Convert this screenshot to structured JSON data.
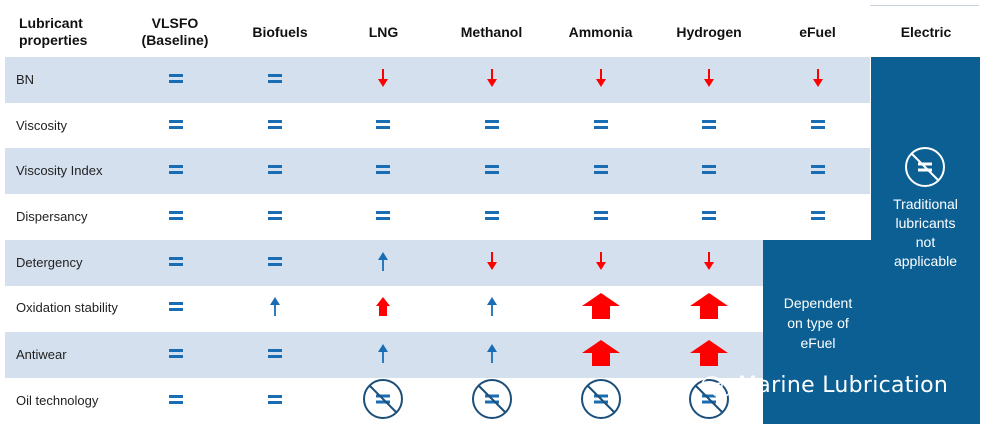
{
  "header": {
    "columns": [
      "Lubricant properties",
      "VLSFO (Baseline)",
      "Biofuels",
      "LNG",
      "Methanol",
      "Ammonia",
      "Hydrogen",
      "eFuel",
      "Electric"
    ]
  },
  "rows": [
    {
      "label": "BN",
      "cells": [
        "eq",
        "eq",
        "down-red",
        "down-red",
        "down-red",
        "down-red",
        "down-red"
      ]
    },
    {
      "label": "Viscosity",
      "cells": [
        "eq",
        "eq",
        "eq",
        "eq",
        "eq",
        "eq",
        "eq"
      ]
    },
    {
      "label": "Viscosity Index",
      "cells": [
        "eq",
        "eq",
        "eq",
        "eq",
        "eq",
        "eq",
        "eq"
      ]
    },
    {
      "label": "Dispersancy",
      "cells": [
        "eq",
        "eq",
        "eq",
        "eq",
        "eq",
        "eq",
        "eq"
      ]
    },
    {
      "label": "Detergency",
      "cells": [
        "eq",
        "eq",
        "up-blue",
        "down-red",
        "down-red",
        "down-red",
        ""
      ]
    },
    {
      "label": "Oxidation stability",
      "cells": [
        "eq",
        "up-blue",
        "up-red",
        "up-blue",
        "big-up-red",
        "big-up-red",
        ""
      ]
    },
    {
      "label": "Antiwear",
      "cells": [
        "eq",
        "eq",
        "up-blue",
        "up-blue",
        "big-up-red",
        "big-up-red",
        ""
      ]
    },
    {
      "label": "Oil technology",
      "cells": [
        "eq",
        "eq",
        "not-eq-circle",
        "not-eq-circle",
        "not-eq-circle",
        "not-eq-circle",
        ""
      ]
    }
  ],
  "electric_note": {
    "lines": [
      "Traditional",
      "lubricants",
      "not",
      "applicable"
    ]
  },
  "efuel_note": {
    "lines": [
      "Dependent",
      "on type of",
      "eFuel"
    ]
  },
  "watermark": "Marine Lubrication",
  "colors": {
    "band": "#d5e0ee",
    "dark_blue": "#0b5f93",
    "equal_blue": "#1a6db3",
    "red": "#ff0000"
  }
}
